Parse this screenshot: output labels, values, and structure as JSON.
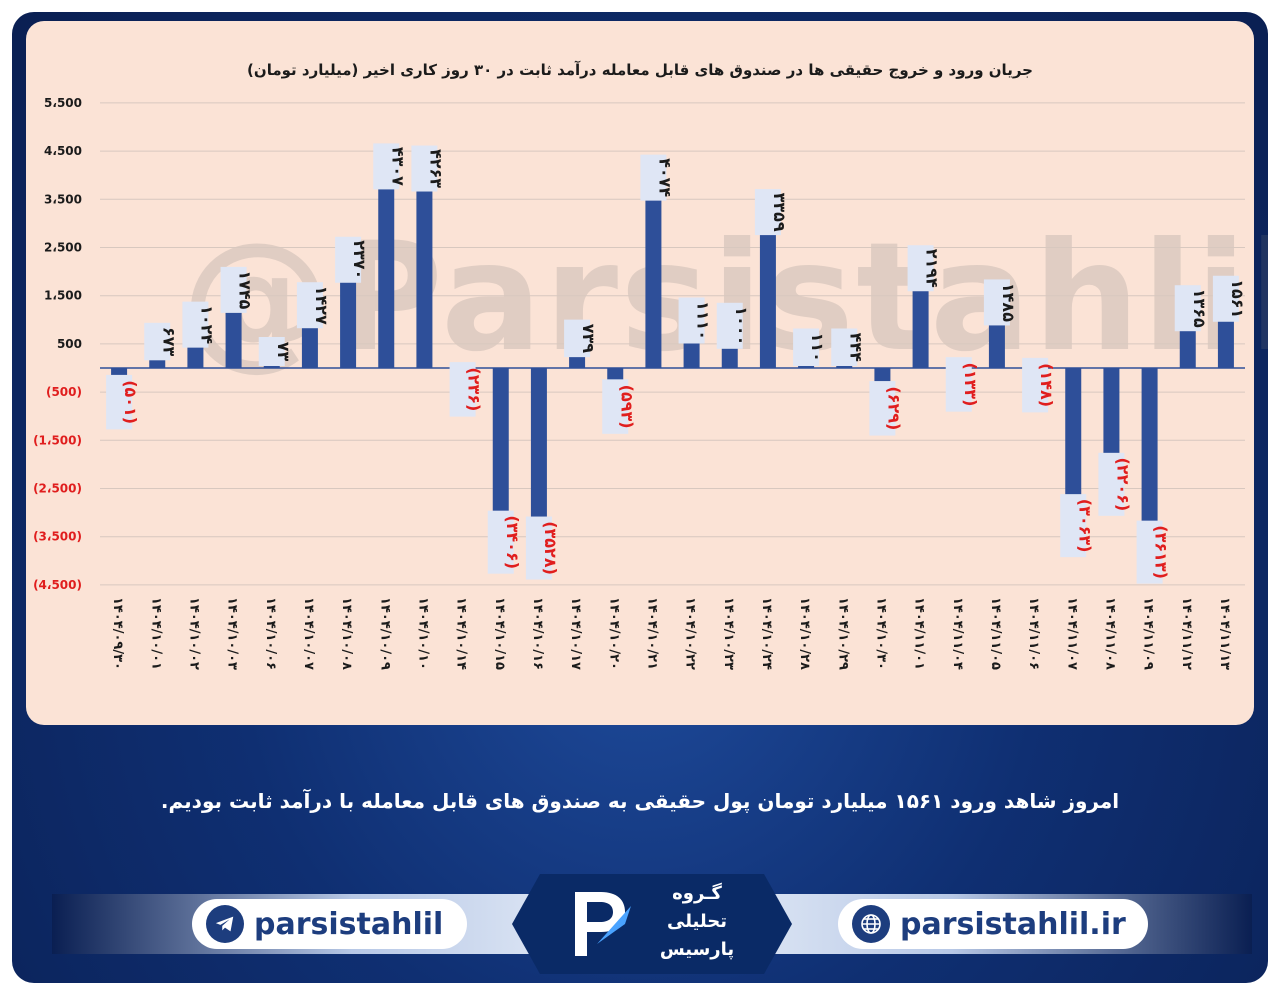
{
  "chart_data": {
    "type": "bar",
    "title": "جریان ورود و خروج حقیقی ها در صندوق های قابل معامله درآمد ثابت در ۳۰ روز کاری اخیر (میلیارد تومان)",
    "categories": [
      "۱۴۰۴/۰۹/۳۰",
      "۱۴۰۴/۱۰/۰۱",
      "۱۴۰۴/۱۰/۰۲",
      "۱۴۰۴/۱۰/۰۳",
      "۱۴۰۴/۱۰/۰۶",
      "۱۴۰۴/۱۰/۰۷",
      "۱۴۰۴/۱۰/۰۸",
      "۱۴۰۴/۱۰/۰۹",
      "۱۴۰۴/۱۰/۱۰",
      "۱۴۰۴/۱۰/۱۴",
      "۱۴۰۴/۱۰/۱۵",
      "۱۴۰۴/۱۰/۱۶",
      "۱۴۰۴/۱۰/۱۷",
      "۱۴۰۴/۱۰/۲۰",
      "۱۴۰۴/۱۰/۲۱",
      "۱۴۰۴/۱۰/۲۲",
      "۱۴۰۴/۱۰/۲۳",
      "۱۴۰۴/۱۰/۲۴",
      "۱۴۰۴/۱۰/۲۸",
      "۱۴۰۴/۱۰/۲۹",
      "۱۴۰۴/۱۰/۳۰",
      "۱۴۰۴/۱۱/۰۱",
      "۱۴۰۴/۱۱/۰۴",
      "۱۴۰۴/۱۱/۰۵",
      "۱۴۰۴/۱۱/۰۶",
      "۱۴۰۴/۱۱/۰۷",
      "۱۴۰۴/۱۱/۰۸",
      "۱۴۰۴/۱۱/۰۹",
      "۱۴۰۴/۱۱/۱۲",
      "۱۴۰۴/۱۱/۱۳"
    ],
    "values": [
      -501,
      673,
      1024,
      1745,
      73,
      1427,
      2370,
      4307,
      4263,
      -236,
      -3406,
      -3528,
      739,
      -593,
      4074,
      1110,
      1000,
      3359,
      110,
      444,
      -629,
      2194,
      -133,
      1485,
      -148,
      -3063,
      -2206,
      -3613,
      1365,
      1561
    ],
    "value_labels": [
      "(۵۰۱)",
      "۶۷۳",
      "۱۰۲۴",
      "۱۷۴۵",
      "۷۳",
      "۱۴۲۷",
      "۲۳۷۰",
      "۴۳۰۷",
      "۴۲۶۳",
      "(۲۳۶)",
      "(۳۴۰۶)",
      "(۳۵۲۸)",
      "۷۳۹",
      "(۵۹۳)",
      "۴۰۷۴",
      "۱۱۱۰",
      "۱۰۰۰",
      "۳۳۵۹",
      "۱۱۰",
      "۴۴۴",
      "(۶۲۹)",
      "۲۱۹۴",
      "(۱۳۳)",
      "۱۴۸۵",
      "(۱۴۸)",
      "(۳۰۶۳)",
      "(۲۲۰۶)",
      "(۳۶۱۳)",
      "۱۳۶۵",
      "۱۵۶۱"
    ],
    "y_ticks": [
      5500,
      4500,
      3500,
      2500,
      1500,
      500,
      -500,
      -1500,
      -2500,
      -3500,
      -4500
    ],
    "y_tick_labels": [
      "5،500",
      "4،500",
      "3،500",
      "2،500",
      "1،500",
      "500",
      "(500)",
      "(1،500)",
      "(2،500)",
      "(3،500)",
      "(4،500)"
    ],
    "ylim": [
      -4600,
      5600
    ],
    "grid": true,
    "colors": {
      "bar": "#2e4f99",
      "positive_label": "#1b1b1b",
      "negative_label": "#e01e1e",
      "label_box": "#dfe6f5"
    }
  },
  "watermark": "@Parsistahlil",
  "caption": "امروز شاهد ورود ۱۵۶۱ میلیارد تومان پول حقیقی به صندوق های قابل معامله با درآمد ثابت بودیم.",
  "footer": {
    "telegram_handle": "parsistahlil",
    "website": "parsistahlil.ir",
    "logo_lines": [
      "گـروه",
      "تحلیلی",
      "پارسیس"
    ],
    "icons": {
      "left": "telegram-icon",
      "right": "globe-icon",
      "center": "parsis-logo-icon"
    }
  }
}
